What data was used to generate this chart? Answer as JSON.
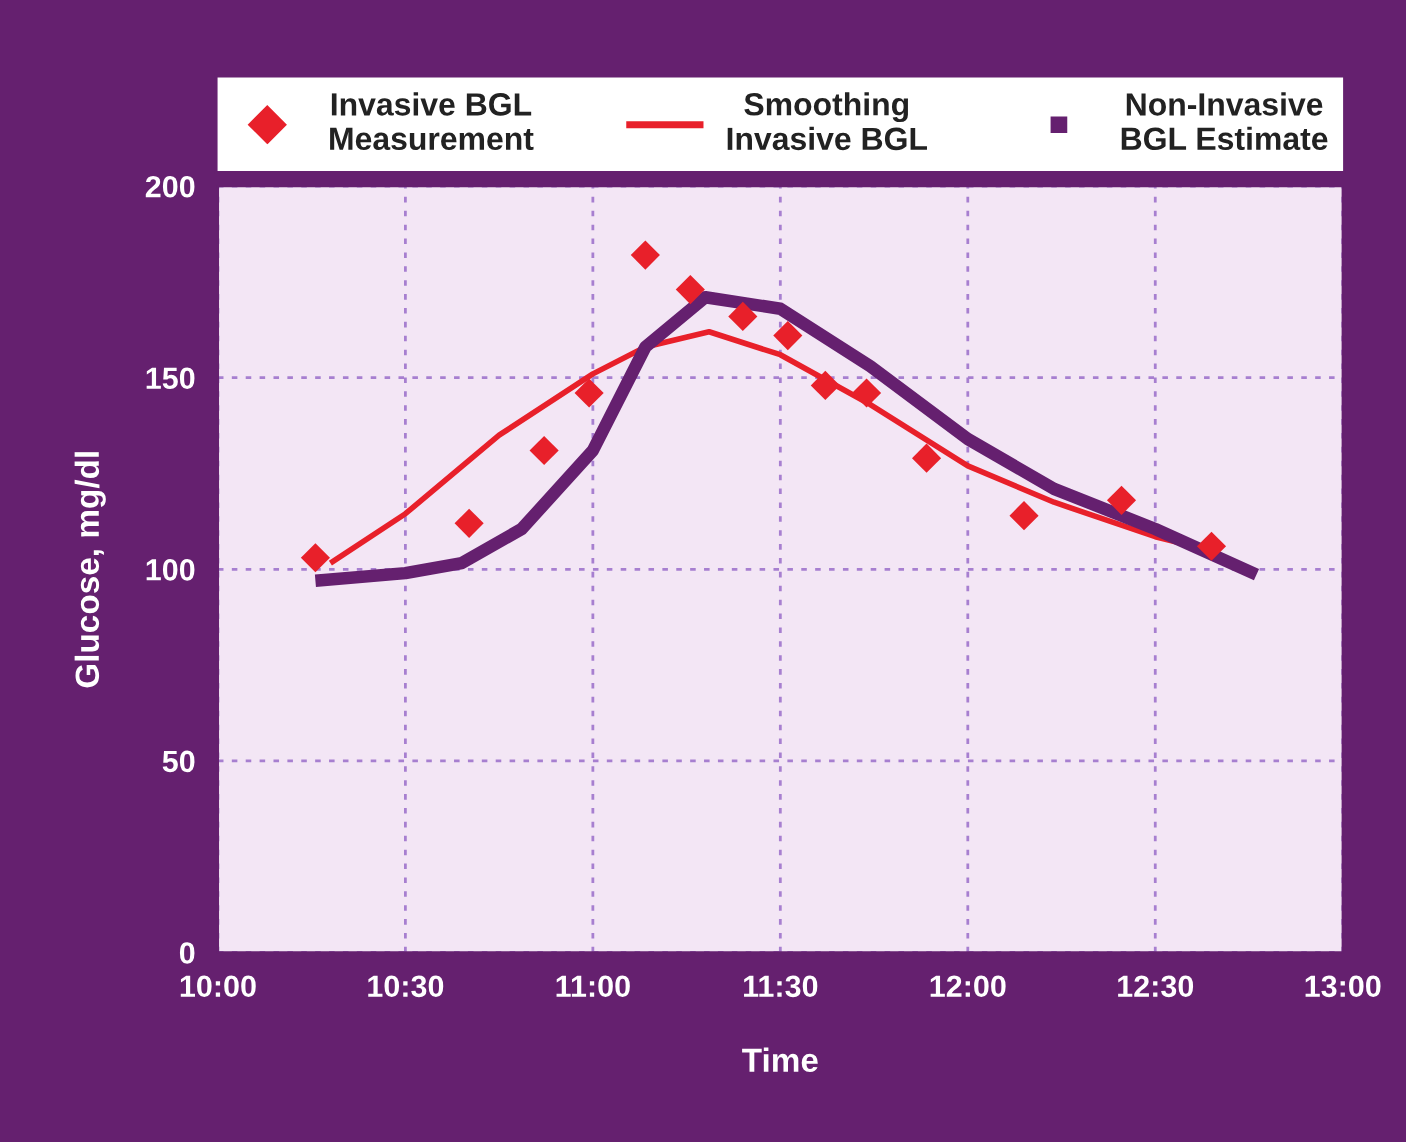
{
  "chart_data": {
    "type": "line",
    "xlabel": "Time",
    "ylabel": "Glucose, mg/dl",
    "xlim": [
      10,
      13
    ],
    "xticks": [
      {
        "value": 10,
        "label": "10:00"
      },
      {
        "value": 10.5,
        "label": "10:30"
      },
      {
        "value": 11,
        "label": "11:00"
      },
      {
        "value": 11.5,
        "label": "11:30"
      },
      {
        "value": 12,
        "label": "12:00"
      },
      {
        "value": 12.5,
        "label": "12:30"
      },
      {
        "value": 13,
        "label": "13:00"
      }
    ],
    "ylim": [
      0,
      200
    ],
    "yticks": [
      0,
      50,
      100,
      150,
      200
    ],
    "grid": true,
    "legend": "top",
    "series": [
      {
        "name": "Invasive BGL Measurement",
        "type": "scatter",
        "marker": "diamond",
        "color": "#e8202a",
        "x": [
          10.26,
          10.67,
          10.87,
          10.99,
          11.14,
          11.26,
          11.4,
          11.52,
          11.62,
          11.73,
          11.89,
          12.15,
          12.41,
          12.65
        ],
        "values": [
          103,
          112,
          131,
          146,
          182,
          173,
          166,
          161,
          148,
          146,
          129,
          114,
          118,
          106
        ]
      },
      {
        "name": "Smoothing Invasive BGL",
        "color": "#e8202a",
        "x": [
          10.3,
          10.5,
          10.75,
          11.0,
          11.14,
          11.31,
          11.5,
          11.74,
          12.0,
          12.23,
          12.5,
          12.66
        ],
        "values": [
          101.6,
          114.5,
          135,
          151,
          158,
          162,
          156,
          143,
          127,
          117.5,
          108.5,
          104.6
        ]
      },
      {
        "name": "Non-Invasive BGL Estimate",
        "color": "#65206f",
        "x": [
          10.26,
          10.5,
          10.65,
          10.81,
          11.0,
          11.14,
          11.3,
          11.5,
          11.74,
          12.0,
          12.23,
          12.5,
          12.77
        ],
        "values": [
          97,
          99,
          101.6,
          110.5,
          131,
          158,
          171,
          168,
          153,
          134,
          121,
          110.5,
          98.6
        ]
      }
    ]
  }
}
